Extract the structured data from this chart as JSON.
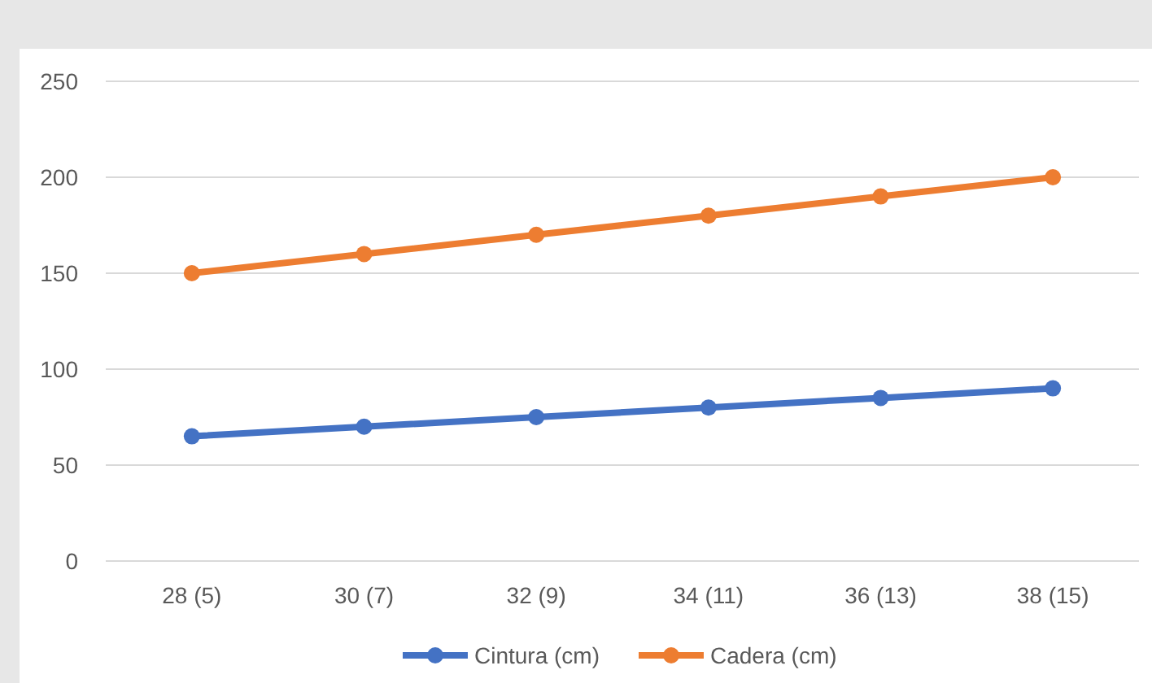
{
  "chart_data": {
    "type": "line",
    "categories": [
      "28 (5)",
      "30 (7)",
      "32 (9)",
      "34 (11)",
      "36 (13)",
      "38 (15)"
    ],
    "series": [
      {
        "name": "Cintura (cm)",
        "color": "#4472c4",
        "values": [
          65,
          70,
          75,
          80,
          85,
          90
        ]
      },
      {
        "name": "Cadera (cm)",
        "color": "#ed7d31",
        "values": [
          150,
          160,
          170,
          180,
          190,
          200
        ]
      }
    ],
    "ylim": [
      0,
      250
    ],
    "yticks": [
      0,
      50,
      100,
      150,
      200,
      250
    ],
    "grid": "y",
    "legend": "bottom",
    "marker": "circle",
    "line_style": "solid"
  }
}
